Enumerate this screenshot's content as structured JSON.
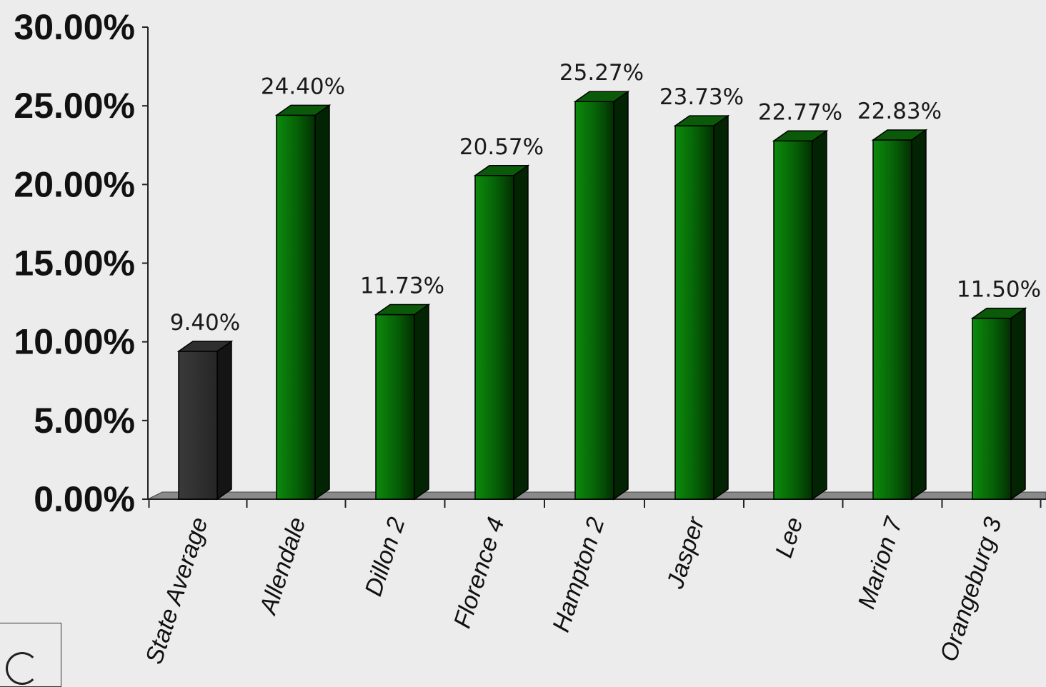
{
  "chart_data": {
    "type": "bar",
    "categories": [
      "State Average",
      "Allendale",
      "Dillon 2",
      "Florence 4",
      "Hampton 2",
      "Jasper",
      "Lee",
      "Marion 7",
      "Orangeburg 3"
    ],
    "values": [
      9.4,
      24.4,
      11.73,
      20.57,
      25.27,
      23.73,
      22.77,
      22.83,
      11.5
    ],
    "data_labels": [
      "9.40%",
      "24.40%",
      "11.73%",
      "20.57%",
      "25.27%",
      "23.73%",
      "22.77%",
      "22.83%",
      "11.50%"
    ],
    "ylim": [
      0,
      30
    ],
    "yticks": [
      0,
      5,
      10,
      15,
      20,
      25,
      30
    ],
    "ytick_labels": [
      "0.00%",
      "5.00%",
      "10.00%",
      "15.00%",
      "20.00%",
      "25.00%",
      "30.00%"
    ],
    "title": "",
    "xlabel": "",
    "ylabel": "",
    "grid": false,
    "colors": {
      "state_average": "#2d2d2d",
      "district": "#0b6a0b"
    }
  }
}
